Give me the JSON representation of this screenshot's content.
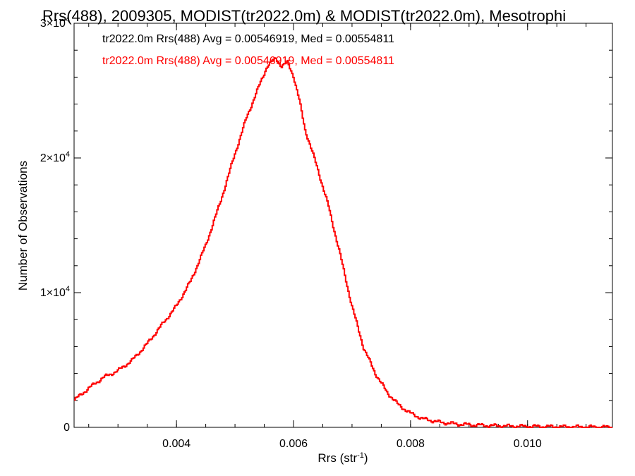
{
  "chart_data": {
    "type": "line",
    "title": "Rrs(488), 2009305, MODIST(tr2022.0m) & MODIST(tr2022.0m), Mesotrophi",
    "xlabel": "Rrs (str",
    "xlabel_sup": "-1",
    "xlabel_end": ")",
    "ylabel": "Number of Observations",
    "xlim": [
      0.00225,
      0.01145
    ],
    "ylim": [
      0,
      30000
    ],
    "x_ticks": [
      {
        "value": 0.004,
        "label": "0.004"
      },
      {
        "value": 0.006,
        "label": "0.006"
      },
      {
        "value": 0.008,
        "label": "0.008"
      },
      {
        "value": 0.01,
        "label": "0.010"
      }
    ],
    "y_ticks": [
      {
        "value": 0,
        "label": "0",
        "exp": ""
      },
      {
        "value": 10000,
        "label": "1×10",
        "exp": "4"
      },
      {
        "value": 20000,
        "label": "2×10",
        "exp": "4"
      },
      {
        "value": 30000,
        "label": "3×10",
        "exp": "4"
      }
    ],
    "legend": [
      {
        "text": "tr2022.0m Rrs(488) Avg = 0.00546919, Med = 0.00554811",
        "color": "#000000"
      },
      {
        "text": "tr2022.0m Rrs(488) Avg = 0.00546919, Med = 0.00554811",
        "color": "#ff0000"
      }
    ],
    "legend_position": "top-left",
    "series": [
      {
        "color": "#ff0000",
        "step": true,
        "x": [
          0.00225,
          0.0025,
          0.00275,
          0.003,
          0.00325,
          0.0035,
          0.00375,
          0.004,
          0.00425,
          0.0045,
          0.00475,
          0.005,
          0.0052,
          0.0054,
          0.00555,
          0.0057,
          0.0058,
          0.0059,
          0.006,
          0.0061,
          0.0062,
          0.0064,
          0.0066,
          0.0068,
          0.007,
          0.0072,
          0.0074,
          0.0076,
          0.0078,
          0.008,
          0.0082,
          0.0085,
          0.0088,
          0.0091,
          0.0094,
          0.0097,
          0.01,
          0.0105,
          0.011,
          0.01145
        ],
        "y": [
          2000,
          2900,
          3700,
          4200,
          5000,
          6200,
          7600,
          9000,
          10900,
          13500,
          16700,
          20300,
          23000,
          25200,
          26800,
          27400,
          26800,
          27100,
          26100,
          24300,
          22100,
          19400,
          16400,
          12800,
          9000,
          5900,
          4000,
          2600,
          1650,
          1050,
          650,
          380,
          240,
          170,
          120,
          90,
          70,
          45,
          25,
          10
        ]
      }
    ]
  }
}
